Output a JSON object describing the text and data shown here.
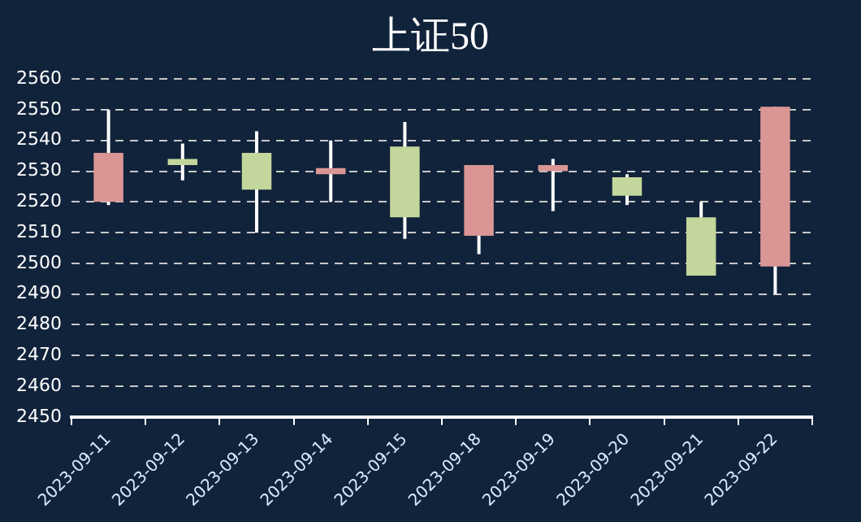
{
  "chart_data": {
    "type": "candlestick",
    "title": "上证50",
    "categories": [
      "2023-09-11",
      "2023-09-12",
      "2023-09-13",
      "2023-09-14",
      "2023-09-15",
      "2023-09-18",
      "2023-09-19",
      "2023-09-20",
      "2023-09-21",
      "2023-09-22"
    ],
    "ohlc": [
      [
        2520,
        2550,
        2519,
        2536
      ],
      [
        2534,
        2539,
        2527,
        2532
      ],
      [
        2536,
        2543,
        2510,
        2524
      ],
      [
        2529,
        2540,
        2520,
        2531
      ],
      [
        2538,
        2546,
        2508,
        2515
      ],
      [
        2509,
        2532,
        2503,
        2532
      ],
      [
        2530,
        2534,
        2517,
        2532
      ],
      [
        2528,
        2529,
        2519,
        2522
      ],
      [
        2515,
        2520,
        2496,
        2496
      ],
      [
        2499,
        2551,
        2490,
        2551
      ]
    ],
    "colors": [
      "#d99694",
      "#c3d69b",
      "#c3d69b",
      "#d99694",
      "#c3d69b",
      "#d99694",
      "#d99694",
      "#c3d69b",
      "#c3d69b",
      "#d99694"
    ],
    "ylim": [
      2450,
      2560
    ],
    "yticks": [
      2450,
      2460,
      2470,
      2480,
      2490,
      2500,
      2510,
      2520,
      2530,
      2540,
      2550,
      2560
    ],
    "grid": "y",
    "legend": false
  }
}
